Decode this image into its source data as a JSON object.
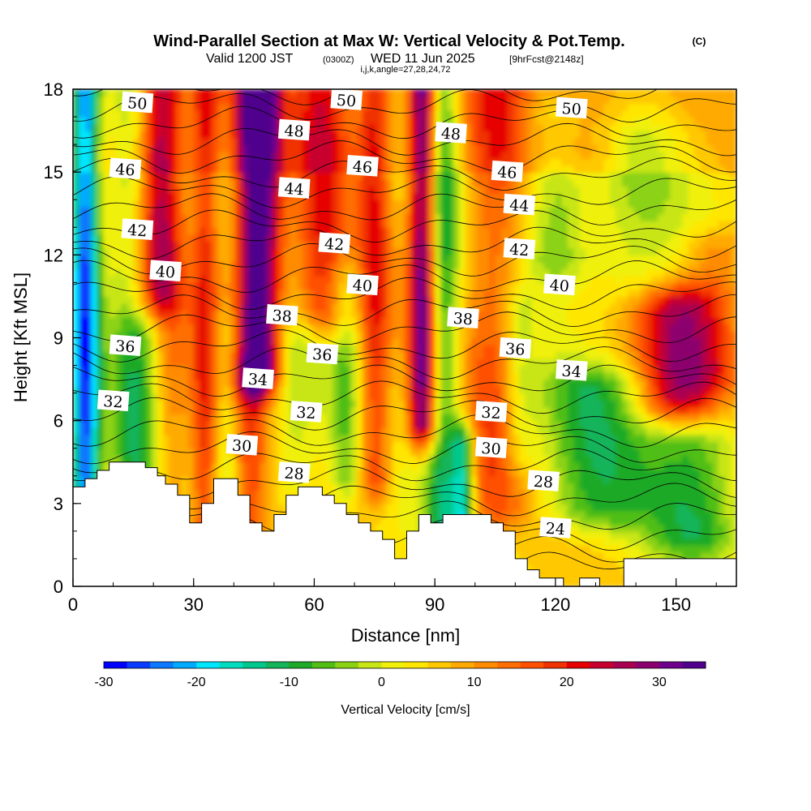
{
  "chart_data": {
    "type": "heatmap",
    "title": "Wind-Parallel Section at Max W: Vertical Velocity & Pot.Temp.",
    "copyright_mark": "(C)",
    "subtitle": {
      "valid_prefix": "Valid 1200 JST",
      "utc": "(0300Z)",
      "date": "WED 11 Jun 2025",
      "forecast": "[9hrFcst@2148z]"
    },
    "indices_label": "i,j,k,angle=27,28,24,72",
    "xlabel": "Distance [nm]",
    "ylabel": "Height [Kft MSL]",
    "xlim": [
      0,
      165
    ],
    "ylim": [
      0,
      18
    ],
    "x_ticks": [
      "0",
      "30",
      "60",
      "90",
      "120",
      "150"
    ],
    "x_tick_values": [
      0,
      30,
      60,
      90,
      120,
      150
    ],
    "y_ticks": [
      "0",
      "3",
      "6",
      "9",
      "12",
      "15",
      "18"
    ],
    "y_tick_values": [
      0,
      3,
      6,
      9,
      12,
      15,
      18
    ],
    "colorbar": {
      "label": "Vertical Velocity [cm/s]",
      "min": -30,
      "max": 35,
      "step": 2.5,
      "tick_labels": [
        "-30",
        "-20",
        "-10",
        "0",
        "10",
        "20",
        "30"
      ],
      "tick_values": [
        -30,
        -20,
        -10,
        0,
        10,
        20,
        30
      ],
      "colors": [
        "#0000ff",
        "#0a3cff",
        "#0a78ff",
        "#00aaff",
        "#00e6ff",
        "#00dcbe",
        "#00c88c",
        "#14b45a",
        "#1eaa28",
        "#50be14",
        "#8cd214",
        "#c8e614",
        "#f0f00a",
        "#ffe600",
        "#ffc800",
        "#ffaa00",
        "#ff8c00",
        "#ff6e00",
        "#ff5000",
        "#f03200",
        "#e60000",
        "#c8002d",
        "#aa0050",
        "#8c006e",
        "#6e008c",
        "#50008c"
      ]
    },
    "updrafts": [
      {
        "x": 22,
        "y0": 0,
        "y1": 18,
        "w": 4.0,
        "amp": 22
      },
      {
        "x": 33,
        "y0": 2,
        "y1": 18,
        "w": 2.5,
        "amp": 15
      },
      {
        "x": 46,
        "y0": 8,
        "y1": 18,
        "w": 4.0,
        "amp": 35
      },
      {
        "x": 44,
        "y0": 2,
        "y1": 7,
        "w": 3.0,
        "amp": 12
      },
      {
        "x": 62,
        "y0": 10,
        "y1": 18,
        "w": 5.0,
        "amp": 15
      },
      {
        "x": 75,
        "y0": 4,
        "y1": 18,
        "w": 3.0,
        "amp": 15
      },
      {
        "x": 87,
        "y0": 6,
        "y1": 18,
        "w": 2.5,
        "amp": 28
      },
      {
        "x": 105,
        "y0": 3,
        "y1": 18,
        "w": 6.0,
        "amp": 12
      },
      {
        "x": 150,
        "y0": 7,
        "y1": 10,
        "w": 7.0,
        "amp": 20
      },
      {
        "x": 160,
        "y0": 8,
        "y1": 12,
        "w": 6.0,
        "amp": 10
      },
      {
        "x": 125,
        "y0": 16,
        "y1": 18,
        "w": 8.0,
        "amp": 8
      }
    ],
    "downdrafts": [
      {
        "x": 3,
        "y0": 0,
        "y1": 18,
        "w": 2.5,
        "amp": -30
      },
      {
        "x": 20,
        "y0": 3,
        "y1": 9,
        "w": 4.0,
        "amp": -20
      },
      {
        "x": 14,
        "y0": 4,
        "y1": 18,
        "w": 4.0,
        "amp": -8
      },
      {
        "x": 38,
        "y0": 4,
        "y1": 9,
        "w": 3.0,
        "amp": -6
      },
      {
        "x": 55,
        "y0": 4,
        "y1": 9,
        "w": 4.0,
        "amp": -6
      },
      {
        "x": 68,
        "y0": 4,
        "y1": 11,
        "w": 3.0,
        "amp": -8
      },
      {
        "x": 92,
        "y0": 2,
        "y1": 18,
        "w": 3.0,
        "amp": -15
      },
      {
        "x": 97,
        "y0": 2,
        "y1": 5,
        "w": 2.0,
        "amp": -20
      },
      {
        "x": 111,
        "y0": 5,
        "y1": 10,
        "w": 3.0,
        "amp": -8
      },
      {
        "x": 120,
        "y0": 12,
        "y1": 17,
        "w": 6.0,
        "amp": -10
      },
      {
        "x": 130,
        "y0": 3,
        "y1": 7,
        "w": 10.0,
        "amp": -12
      },
      {
        "x": 155,
        "y0": 2,
        "y1": 5,
        "w": 8.0,
        "amp": -12
      },
      {
        "x": 140,
        "y0": 11,
        "y1": 16,
        "w": 8.0,
        "amp": -6
      }
    ],
    "theta_contours": [
      {
        "label": "24",
        "labels": [
          [
            120,
            2.1
          ]
        ]
      },
      {
        "label": "28",
        "labels": [
          [
            55,
            4.1
          ],
          [
            117,
            3.8
          ]
        ]
      },
      {
        "label": "30",
        "labels": [
          [
            42,
            5.1
          ],
          [
            104,
            5.0
          ]
        ]
      },
      {
        "label": "32",
        "labels": [
          [
            10,
            6.7
          ],
          [
            58,
            6.3
          ],
          [
            104,
            6.3
          ]
        ]
      },
      {
        "label": "34",
        "labels": [
          [
            46,
            7.5
          ],
          [
            124,
            7.8
          ]
        ]
      },
      {
        "label": "36",
        "labels": [
          [
            13,
            8.7
          ],
          [
            62,
            8.4
          ],
          [
            110,
            8.6
          ]
        ]
      },
      {
        "label": "38",
        "labels": [
          [
            52,
            9.8
          ],
          [
            97,
            9.7
          ]
        ]
      },
      {
        "label": "40",
        "labels": [
          [
            23,
            11.4
          ],
          [
            72,
            10.9
          ],
          [
            121,
            10.9
          ]
        ]
      },
      {
        "label": "42",
        "labels": [
          [
            16,
            12.9
          ],
          [
            65,
            12.4
          ],
          [
            111,
            12.2
          ]
        ]
      },
      {
        "label": "44",
        "labels": [
          [
            55,
            14.4
          ],
          [
            111,
            13.8
          ]
        ]
      },
      {
        "label": "46",
        "labels": [
          [
            13,
            15.1
          ],
          [
            72,
            15.2
          ],
          [
            108,
            15.0
          ]
        ]
      },
      {
        "label": "48",
        "labels": [
          [
            55,
            16.5
          ],
          [
            94,
            16.4
          ]
        ]
      },
      {
        "label": "50",
        "labels": [
          [
            16,
            17.5
          ],
          [
            68,
            17.6
          ],
          [
            124,
            17.3
          ]
        ]
      }
    ],
    "terrain_kft": [
      [
        0,
        3.6
      ],
      [
        3,
        3.6
      ],
      [
        3,
        3.9
      ],
      [
        6,
        3.9
      ],
      [
        6,
        4.2
      ],
      [
        9,
        4.2
      ],
      [
        9,
        4.5
      ],
      [
        18,
        4.5
      ],
      [
        18,
        4.3
      ],
      [
        21,
        4.3
      ],
      [
        21,
        4.0
      ],
      [
        23,
        4.0
      ],
      [
        23,
        3.7
      ],
      [
        26,
        3.7
      ],
      [
        26,
        3.3
      ],
      [
        29,
        3.3
      ],
      [
        29,
        2.3
      ],
      [
        32,
        2.3
      ],
      [
        32,
        3.0
      ],
      [
        35,
        3.0
      ],
      [
        35,
        3.9
      ],
      [
        41,
        3.9
      ],
      [
        41,
        3.3
      ],
      [
        44,
        3.3
      ],
      [
        44,
        2.3
      ],
      [
        47,
        2.3
      ],
      [
        47,
        2.0
      ],
      [
        50,
        2.0
      ],
      [
        50,
        2.6
      ],
      [
        53,
        2.6
      ],
      [
        53,
        3.3
      ],
      [
        56,
        3.3
      ],
      [
        56,
        3.6
      ],
      [
        62,
        3.6
      ],
      [
        62,
        3.3
      ],
      [
        65,
        3.3
      ],
      [
        65,
        3.0
      ],
      [
        68,
        3.0
      ],
      [
        68,
        2.6
      ],
      [
        71,
        2.6
      ],
      [
        71,
        2.3
      ],
      [
        74,
        2.3
      ],
      [
        74,
        2.0
      ],
      [
        77,
        2.0
      ],
      [
        77,
        1.7
      ],
      [
        80,
        1.7
      ],
      [
        80,
        1.0
      ],
      [
        83,
        1.0
      ],
      [
        83,
        2.0
      ],
      [
        86,
        2.0
      ],
      [
        86,
        2.6
      ],
      [
        89,
        2.6
      ],
      [
        89,
        2.3
      ],
      [
        92,
        2.3
      ],
      [
        92,
        2.6
      ],
      [
        104,
        2.6
      ],
      [
        104,
        2.3
      ],
      [
        107,
        2.3
      ],
      [
        107,
        2.0
      ],
      [
        110,
        2.0
      ],
      [
        110,
        1.0
      ],
      [
        113,
        1.0
      ],
      [
        113,
        0.6
      ],
      [
        116,
        0.6
      ],
      [
        116,
        0.3
      ],
      [
        122,
        0.3
      ],
      [
        122,
        0.0
      ],
      [
        126,
        0.0
      ],
      [
        126,
        0.3
      ],
      [
        131,
        0.3
      ],
      [
        131,
        0.0
      ],
      [
        137,
        0.0
      ],
      [
        137,
        1.0
      ],
      [
        165,
        1.0
      ]
    ]
  }
}
